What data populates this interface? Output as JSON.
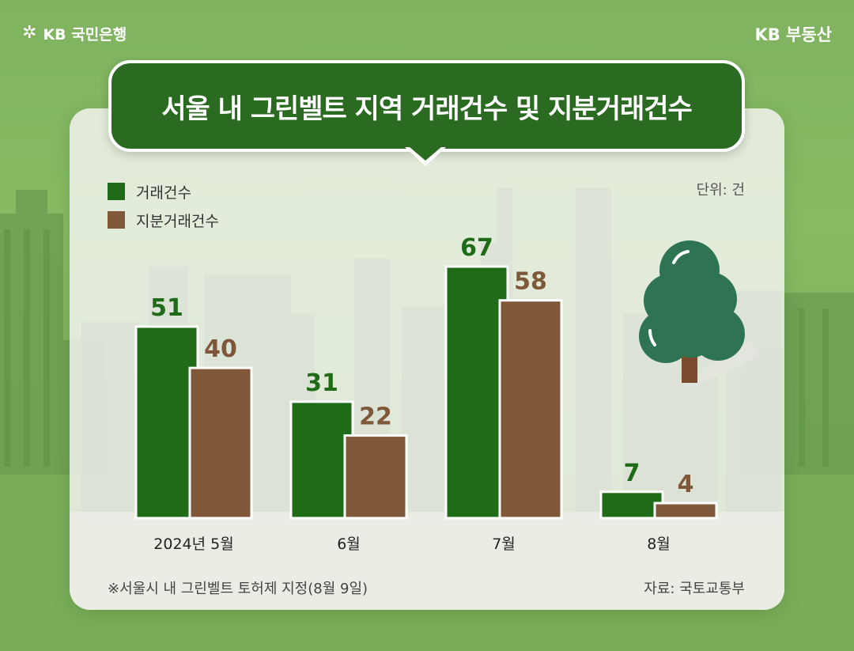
{
  "brand": {
    "bank_logo_text": "KB 국민은행",
    "realestate_text": "KB 부동산"
  },
  "title": "서울 내 그린벨트 지역 거래건수 및 지분거래건수",
  "unit": "단위: 건",
  "note": "※서울시 내 그린벨트 토허제 지정(8월 9일)",
  "source": "자료: 국토교통부",
  "colors": {
    "series1": "#1f6b18",
    "series2": "#7e5838",
    "title_bg": "#2a6a21",
    "tree": "#2f7452"
  },
  "chart_data": {
    "type": "bar",
    "categories": [
      "2024년 5월",
      "6월",
      "7월",
      "8월"
    ],
    "series": [
      {
        "name": "거래건수",
        "values": [
          51,
          31,
          67,
          7
        ]
      },
      {
        "name": "지분거래건수",
        "values": [
          40,
          22,
          58,
          4
        ]
      }
    ],
    "title": "서울 내 그린벨트 지역 거래건수 및 지분거래건수",
    "ylabel": "단위: 건",
    "ylim": [
      0,
      67
    ],
    "grid": false,
    "legend": "top-left",
    "data_labels": true
  }
}
